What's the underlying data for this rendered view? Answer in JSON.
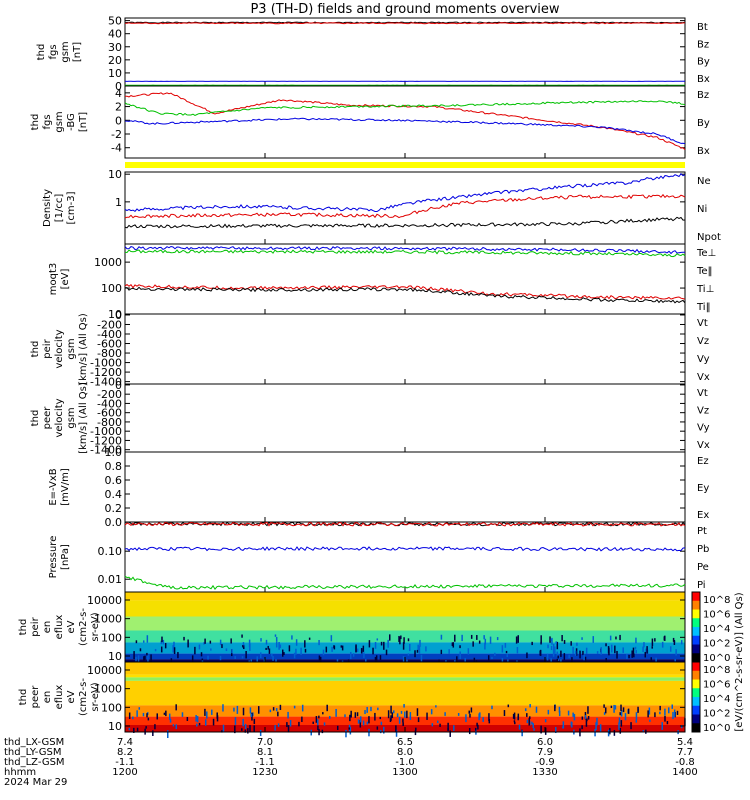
{
  "chart_data": {
    "type": "line",
    "title": "P3 (TH-D) fields and ground moments overview",
    "panels": [
      {
        "id": "p1",
        "ylabel": [
          "thd",
          "fgs",
          "gsm",
          "[nT]"
        ],
        "ylim": [
          0,
          52
        ],
        "ticks": [
          "0",
          "10",
          "20",
          "30",
          "40",
          "50"
        ],
        "tickvals": [
          0,
          10,
          20,
          30,
          40,
          50
        ],
        "legend": [
          {
            "name": "Bt",
            "color": "#000000"
          },
          {
            "name": "Bz",
            "color": "#e00000"
          },
          {
            "name": "By",
            "color": "#00c000"
          },
          {
            "name": "Bx",
            "color": "#0000e0"
          }
        ],
        "series": [
          {
            "name": "Bt",
            "color": "#000000",
            "base": 48.5,
            "amp": 0.8
          },
          {
            "name": "Bz",
            "color": "#e00000",
            "base": 48.0,
            "amp": 0.8
          },
          {
            "name": "Bx",
            "color": "#0000e0",
            "base": 3.6,
            "amp": 0.2
          },
          {
            "name": "By",
            "color": "#00c000",
            "base": 0.6,
            "amp": 0.15
          }
        ]
      },
      {
        "id": "p2",
        "ylabel": [
          "thd",
          "fgs",
          "gsm",
          "-BG",
          "[nT]"
        ],
        "ylim": [
          -5.5,
          5
        ],
        "ticks": [
          "4",
          "2",
          "0",
          "-2",
          "-4"
        ],
        "tickvals": [
          4,
          2,
          0,
          -2,
          -4
        ],
        "legend": [
          {
            "name": "Bz",
            "color": "#e00000"
          },
          {
            "name": "By",
            "color": "#00c000"
          },
          {
            "name": "Bx",
            "color": "#0000e0"
          }
        ],
        "series": [
          {
            "name": "Bz",
            "color": "#e00000",
            "knots": [
              [
                0,
                3.5
              ],
              [
                0.08,
                4.0
              ],
              [
                0.16,
                1.0
              ],
              [
                0.28,
                3.0
              ],
              [
                0.4,
                2.2
              ],
              [
                0.55,
                2.0
              ],
              [
                0.7,
                0.5
              ],
              [
                0.85,
                -1.0
              ],
              [
                0.95,
                -2.5
              ],
              [
                1,
                -4.2
              ]
            ]
          },
          {
            "name": "By",
            "color": "#00c000",
            "knots": [
              [
                0,
                2.5
              ],
              [
                0.06,
                1.0
              ],
              [
                0.12,
                0.8
              ],
              [
                0.25,
                1.8
              ],
              [
                0.4,
                2.0
              ],
              [
                0.6,
                2.2
              ],
              [
                0.8,
                2.6
              ],
              [
                0.95,
                2.8
              ],
              [
                1,
                2.4
              ]
            ]
          },
          {
            "name": "Bx",
            "color": "#0000e0",
            "knots": [
              [
                0,
                0.0
              ],
              [
                0.05,
                -0.5
              ],
              [
                0.15,
                -0.2
              ],
              [
                0.3,
                0.2
              ],
              [
                0.5,
                0.0
              ],
              [
                0.7,
                -0.5
              ],
              [
                0.85,
                -1.0
              ],
              [
                0.95,
                -2.0
              ],
              [
                1,
                -3.5
              ]
            ]
          }
        ]
      },
      {
        "id": "p3",
        "ylabel": [
          "Density",
          "[1/cc]",
          "[cm-3]"
        ],
        "ylim": [
          0.03,
          12
        ],
        "log": true,
        "ticks": [
          "10",
          "1"
        ],
        "tickvals": [
          10,
          1
        ],
        "legend": [
          {
            "name": "Ne",
            "color": "#e00000"
          },
          {
            "name": "Ni",
            "color": "#000000"
          },
          {
            "name": "Npot",
            "color": "#0000e0"
          }
        ],
        "series": [
          {
            "name": "Npot",
            "color": "#0000e0",
            "knots": [
              [
                0,
                0.5
              ],
              [
                0.2,
                0.7
              ],
              [
                0.45,
                0.5
              ],
              [
                0.6,
                1.5
              ],
              [
                0.75,
                3.0
              ],
              [
                0.9,
                5.0
              ],
              [
                1,
                10
              ]
            ]
          },
          {
            "name": "Ne",
            "color": "#e00000",
            "knots": [
              [
                0,
                0.3
              ],
              [
                0.3,
                0.35
              ],
              [
                0.5,
                0.3
              ],
              [
                0.6,
                0.9
              ],
              [
                0.8,
                1.5
              ],
              [
                1,
                1.6
              ]
            ]
          },
          {
            "name": "Ni",
            "color": "#000000",
            "knots": [
              [
                0,
                0.13
              ],
              [
                0.5,
                0.14
              ],
              [
                0.8,
                0.16
              ],
              [
                1,
                0.25
              ]
            ]
          }
        ]
      },
      {
        "id": "p4",
        "ylabel": [
          "moqt3",
          "[eV]"
        ],
        "ylim": [
          10,
          5000
        ],
        "log": true,
        "ticks": [
          "1000",
          "100",
          "10"
        ],
        "tickvals": [
          1000,
          100,
          10
        ],
        "legend": [
          {
            "name": "Te⊥",
            "color": "#e00000"
          },
          {
            "name": "Te‖",
            "color": "#000000"
          },
          {
            "name": "Ti⊥",
            "color": "#0000e0"
          },
          {
            "name": "Ti‖",
            "color": "#00c000"
          }
        ],
        "series": [
          {
            "name": "Ti⊥",
            "color": "#0000e0",
            "knots": [
              [
                0,
                3500
              ],
              [
                0.5,
                3400
              ],
              [
                0.8,
                3000
              ],
              [
                1,
                2400
              ]
            ]
          },
          {
            "name": "Ti‖",
            "color": "#00c000",
            "knots": [
              [
                0,
                2600
              ],
              [
                0.5,
                2500
              ],
              [
                0.8,
                2200
              ],
              [
                1,
                1800
              ]
            ]
          },
          {
            "name": "Te⊥",
            "color": "#e00000",
            "knots": [
              [
                0,
                120
              ],
              [
                0.2,
                100
              ],
              [
                0.5,
                110
              ],
              [
                0.65,
                60
              ],
              [
                0.85,
                45
              ],
              [
                1,
                40
              ]
            ]
          },
          {
            "name": "Te‖",
            "color": "#000000",
            "knots": [
              [
                0,
                95
              ],
              [
                0.2,
                85
              ],
              [
                0.5,
                90
              ],
              [
                0.65,
                50
              ],
              [
                0.85,
                35
              ],
              [
                1,
                30
              ]
            ]
          }
        ]
      },
      {
        "id": "p5",
        "ylabel": [
          "thd",
          "peir",
          "velocity",
          "gsm",
          "[km/s] (All Qs)"
        ],
        "ylim": [
          -1450,
          20
        ],
        "ticks": [
          "0",
          "-200",
          "-400",
          "-600",
          "-800",
          "-1000",
          "-1200",
          "-1400"
        ],
        "tickvals": [
          0,
          -200,
          -400,
          -600,
          -800,
          -1000,
          -1200,
          -1400
        ],
        "legend": [
          {
            "name": "Vt",
            "color": "#000000"
          },
          {
            "name": "Vz",
            "color": "#e00000"
          },
          {
            "name": "Vy",
            "color": "#00c000"
          },
          {
            "name": "Vx",
            "color": "#0000e0"
          }
        ],
        "series": []
      },
      {
        "id": "p6",
        "ylabel": [
          "thd",
          "peer",
          "velocity",
          "gsm",
          "[km/s] (All Qs)"
        ],
        "ylim": [
          -1450,
          20
        ],
        "ticks": [
          "0",
          "-200",
          "-400",
          "-600",
          "-800",
          "-1000",
          "-1200",
          "-1400"
        ],
        "tickvals": [
          0,
          -200,
          -400,
          -600,
          -800,
          -1000,
          -1200,
          -1400
        ],
        "legend": [
          {
            "name": "Vt",
            "color": "#000000"
          },
          {
            "name": "Vz",
            "color": "#e00000"
          },
          {
            "name": "Vy",
            "color": "#00c000"
          },
          {
            "name": "Vx",
            "color": "#0000e0"
          }
        ],
        "series": []
      },
      {
        "id": "p7",
        "ylabel": [
          "E=-VxB",
          "[mV/m]"
        ],
        "ylim": [
          0,
          1
        ],
        "ticks": [
          "1.0",
          "0.8",
          "0.6",
          "0.4",
          "0.2",
          "0.0"
        ],
        "tickvals": [
          1,
          0.8,
          0.6,
          0.4,
          0.2,
          0
        ],
        "legend": [
          {
            "name": "Ez",
            "color": "#e00000"
          },
          {
            "name": "Ey",
            "color": "#00c000"
          },
          {
            "name": "Ex",
            "color": "#0000e0"
          }
        ],
        "series": []
      },
      {
        "id": "p8",
        "ylabel": [
          "Pressure",
          "[nPa]"
        ],
        "ylim": [
          0.0035,
          1.1
        ],
        "log": true,
        "ticks": [
          "0.10",
          "0.01"
        ],
        "tickvals": [
          0.1,
          0.01
        ],
        "legend": [
          {
            "name": "Pt",
            "color": "#000000"
          },
          {
            "name": "Pb",
            "color": "#e00000"
          },
          {
            "name": "Pe",
            "color": "#00c000"
          },
          {
            "name": "Pi",
            "color": "#0000e0"
          }
        ],
        "series": [
          {
            "name": "Pt",
            "color": "#000000",
            "knots": [
              [
                0,
                0.95
              ],
              [
                1,
                0.92
              ]
            ]
          },
          {
            "name": "Pb",
            "color": "#e00000",
            "knots": [
              [
                0,
                0.93
              ],
              [
                1,
                0.9
              ]
            ]
          },
          {
            "name": "Pi",
            "color": "#0000e0",
            "knots": [
              [
                0,
                0.12
              ],
              [
                0.5,
                0.125
              ],
              [
                1,
                0.115
              ]
            ]
          },
          {
            "name": "Pe",
            "color": "#00c000",
            "knots": [
              [
                0,
                0.012
              ],
              [
                0.05,
                0.006
              ],
              [
                0.1,
                0.005
              ],
              [
                0.5,
                0.0055
              ],
              [
                1,
                0.006
              ]
            ]
          }
        ]
      },
      {
        "id": "p9",
        "ylabel": [
          "thd",
          "peir",
          "en",
          "eflux",
          "eV",
          "(cm2-s-",
          "sr-eV)"
        ],
        "spectrogram": true,
        "ticks": [
          "10000",
          "1000",
          "100",
          "10"
        ],
        "colorbar": [
          "10^8",
          "10^6",
          "10^4",
          "10^2",
          "10^0"
        ]
      },
      {
        "id": "p10",
        "ylabel": [
          "thd",
          "peer",
          "en",
          "eflux",
          "eV",
          "(cm2-s-",
          "sr-eV)"
        ],
        "spectrogram": true,
        "ticks": [
          "10000",
          "1000",
          "100",
          "10"
        ],
        "colorbar": [
          "10^8",
          "10^6",
          "10^4",
          "10^2",
          "10^0"
        ]
      }
    ],
    "colorbar_label": "[eV/(cm^2-s-sr-eV)] (All Qs)",
    "x_axis": {
      "rows": [
        {
          "label": "thd_LX-GSM",
          "values": [
            "7.4",
            "7.0",
            "6.5",
            "6.0",
            "5.4"
          ]
        },
        {
          "label": "thd_LY-GSM",
          "values": [
            "8.2",
            "8.1",
            "8.0",
            "7.9",
            "7.7"
          ]
        },
        {
          "label": "thd_LZ-GSM",
          "values": [
            "-1.1",
            "-1.1",
            "-1.0",
            "-0.9",
            "-0.8"
          ]
        },
        {
          "label": "hhmm",
          "values": [
            "1200",
            "1230",
            "1300",
            "1330",
            "1400"
          ]
        }
      ],
      "date": "2024 Mar 29"
    },
    "quality_flag_color": "#ffff00"
  }
}
